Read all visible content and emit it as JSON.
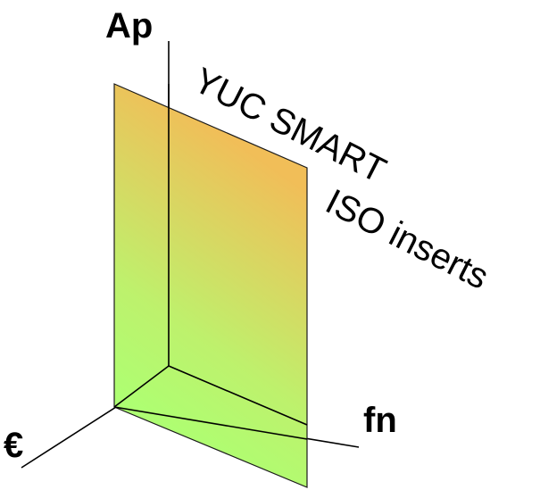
{
  "axes": {
    "vertical_label": "Ap",
    "horizontal_label": "fn",
    "depth_label": "€"
  },
  "panel": {
    "caption_line1": "YUC SMART",
    "caption_line2": "ISO inserts",
    "color_start": "#a6ff66",
    "color_end": "#f0b84a"
  }
}
